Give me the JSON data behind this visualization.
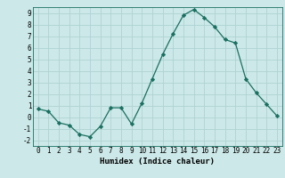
{
  "x": [
    0,
    1,
    2,
    3,
    4,
    5,
    6,
    7,
    8,
    9,
    10,
    11,
    12,
    13,
    14,
    15,
    16,
    17,
    18,
    19,
    20,
    21,
    22,
    23
  ],
  "y": [
    0.7,
    0.5,
    -0.5,
    -0.7,
    -1.5,
    -1.7,
    -0.8,
    0.8,
    0.8,
    -0.6,
    1.2,
    3.3,
    5.4,
    7.2,
    8.8,
    9.3,
    8.6,
    7.8,
    6.7,
    6.4,
    3.3,
    2.1,
    1.1,
    0.1
  ],
  "line_color": "#1a7060",
  "marker": "D",
  "marker_size": 2.2,
  "bg_color": "#cce8e8",
  "grid_color": "#aacfcf",
  "xlabel": "Humidex (Indice chaleur)",
  "ylim": [
    -2.5,
    9.5
  ],
  "xlim": [
    -0.5,
    23.5
  ],
  "yticks": [
    -2,
    -1,
    0,
    1,
    2,
    3,
    4,
    5,
    6,
    7,
    8,
    9
  ],
  "xticks": [
    0,
    1,
    2,
    3,
    4,
    5,
    6,
    7,
    8,
    9,
    10,
    11,
    12,
    13,
    14,
    15,
    16,
    17,
    18,
    19,
    20,
    21,
    22,
    23
  ],
  "label_fontsize": 6.5,
  "tick_fontsize": 5.5
}
